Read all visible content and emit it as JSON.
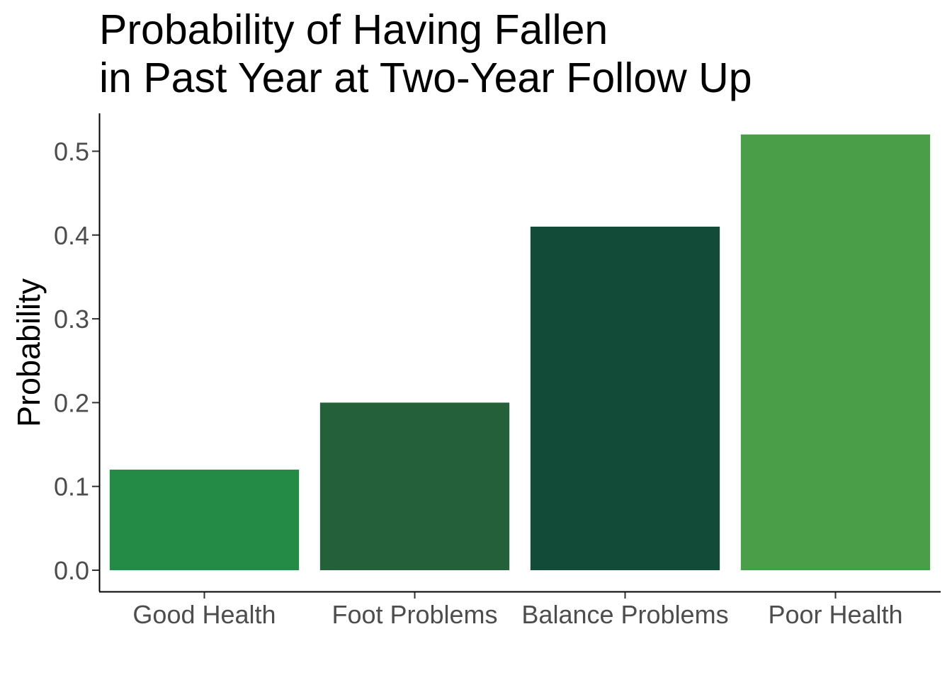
{
  "chart_data": {
    "type": "bar",
    "title_lines": [
      "Probability of Having Fallen",
      "in Past Year at Two-Year Follow Up"
    ],
    "xlabel": "",
    "ylabel": "Probability",
    "categories": [
      "Good Health",
      "Foot Problems",
      "Balance Problems",
      "Poor Health"
    ],
    "values": [
      0.12,
      0.2,
      0.41,
      0.52
    ],
    "colors": [
      "#238b45",
      "#24613b",
      "#124b37",
      "#4a9e47"
    ],
    "ylim": [
      0,
      0.55
    ],
    "yticks": [
      "0.0",
      "0.1",
      "0.2",
      "0.3",
      "0.4",
      "0.5"
    ],
    "grid": false,
    "legend": "none"
  }
}
